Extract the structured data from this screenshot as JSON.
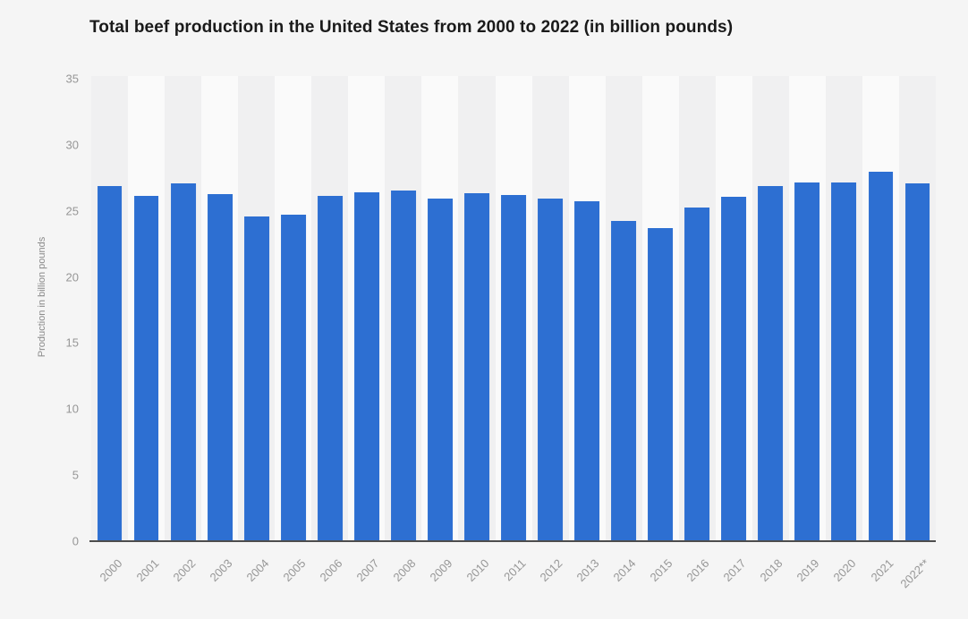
{
  "title": "Total beef production in the United States from 2000 to 2022 (in billion pounds)",
  "chart_data": {
    "type": "bar",
    "title": "Total beef production in the United States from 2000 to 2022 (in billion pounds)",
    "xlabel": "",
    "ylabel": "Production in billion pounds",
    "ylim": [
      0,
      35
    ],
    "yticks": [
      0,
      5,
      10,
      15,
      20,
      25,
      30,
      35
    ],
    "grid": "horizontal dotted lines, legend: none",
    "categories": [
      "2000",
      "2001",
      "2002",
      "2003",
      "2004",
      "2005",
      "2006",
      "2007",
      "2008",
      "2009",
      "2010",
      "2011",
      "2012",
      "2013",
      "2014",
      "2015",
      "2016",
      "2017",
      "2018",
      "2019",
      "2020",
      "2021",
      "2022**"
    ],
    "values": [
      26.89,
      26.11,
      27.09,
      26.24,
      24.55,
      24.68,
      26.15,
      26.42,
      26.56,
      25.96,
      26.31,
      26.2,
      25.91,
      25.72,
      24.25,
      23.69,
      25.22,
      26.08,
      26.87,
      27.15,
      27.17,
      27.95,
      27.09
    ]
  },
  "colors": {
    "background": "#f5f5f5",
    "band_dark": "#f0f0f1",
    "band_light": "#fafafa",
    "bar": "#2d6fd2",
    "axis_line": "#4d4d4d",
    "gridline": "#c7c7c7",
    "tick_text": "#969696",
    "axis_title_text": "#8a8a8a",
    "title_text": "#1a1a1a"
  }
}
